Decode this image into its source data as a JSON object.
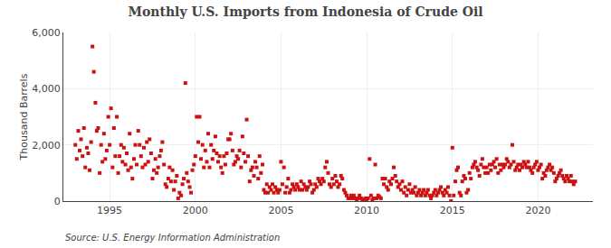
{
  "chart_data": {
    "type": "scatter",
    "title": "Monthly U.S. Imports from Indonesia of Crude Oil",
    "ylabel": "Thousand Barrels",
    "annotations": [
      "Source: U.S. Energy Information Administration"
    ],
    "color": "#cc1111",
    "marker": "square",
    "grid": true,
    "xlim": [
      1992.3,
      2023.2
    ],
    "xticks": [
      1995,
      2000,
      2005,
      2010,
      2015,
      2020
    ],
    "ylim": [
      0,
      6000
    ],
    "yticks": [
      0,
      {
        "value": 2000,
        "label": "2,000"
      },
      {
        "value": 4000,
        "label": "4,000"
      },
      {
        "value": 6000,
        "label": "6,000"
      }
    ],
    "x": [
      1993.0,
      1993.08,
      1993.17,
      1993.25,
      1993.33,
      1993.42,
      1993.5,
      1993.58,
      1993.67,
      1993.75,
      1993.83,
      1993.92,
      1994.0,
      1994.08,
      1994.17,
      1994.25,
      1994.33,
      1994.42,
      1994.5,
      1994.58,
      1994.67,
      1994.75,
      1994.83,
      1994.92,
      1995.0,
      1995.08,
      1995.17,
      1995.25,
      1995.33,
      1995.42,
      1995.5,
      1995.58,
      1995.67,
      1995.75,
      1995.83,
      1995.92,
      1996.0,
      1996.08,
      1996.17,
      1996.25,
      1996.33,
      1996.42,
      1996.5,
      1996.58,
      1996.67,
      1996.75,
      1996.83,
      1996.92,
      1997.0,
      1997.08,
      1997.17,
      1997.25,
      1997.33,
      1997.42,
      1997.5,
      1997.58,
      1997.67,
      1997.75,
      1997.83,
      1997.92,
      1998.0,
      1998.08,
      1998.17,
      1998.25,
      1998.33,
      1998.42,
      1998.5,
      1998.58,
      1998.67,
      1998.75,
      1998.83,
      1998.92,
      1999.0,
      1999.08,
      1999.17,
      1999.25,
      1999.33,
      1999.42,
      1999.5,
      1999.58,
      1999.67,
      1999.75,
      1999.83,
      1999.92,
      2000.0,
      2000.08,
      2000.17,
      2000.25,
      2000.33,
      2000.42,
      2000.5,
      2000.58,
      2000.67,
      2000.75,
      2000.83,
      2000.92,
      2001.0,
      2001.08,
      2001.17,
      2001.25,
      2001.33,
      2001.42,
      2001.5,
      2001.58,
      2001.67,
      2001.75,
      2001.83,
      2001.92,
      2002.0,
      2002.08,
      2002.17,
      2002.25,
      2002.33,
      2002.42,
      2002.5,
      2002.58,
      2002.67,
      2002.75,
      2002.83,
      2002.92,
      2003.0,
      2003.08,
      2003.17,
      2003.25,
      2003.33,
      2003.42,
      2003.5,
      2003.58,
      2003.67,
      2003.75,
      2003.83,
      2003.92,
      2004.0,
      2004.08,
      2004.17,
      2004.25,
      2004.33,
      2004.42,
      2004.5,
      2004.58,
      2004.67,
      2004.75,
      2004.83,
      2004.92,
      2005.0,
      2005.08,
      2005.17,
      2005.25,
      2005.33,
      2005.42,
      2005.5,
      2005.58,
      2005.67,
      2005.75,
      2005.83,
      2005.92,
      2006.0,
      2006.08,
      2006.17,
      2006.25,
      2006.33,
      2006.42,
      2006.5,
      2006.58,
      2006.67,
      2006.75,
      2006.83,
      2006.92,
      2007.0,
      2007.08,
      2007.17,
      2007.25,
      2007.33,
      2007.42,
      2007.5,
      2007.58,
      2007.67,
      2007.75,
      2007.83,
      2007.92,
      2008.0,
      2008.08,
      2008.17,
      2008.25,
      2008.33,
      2008.42,
      2008.5,
      2008.58,
      2008.67,
      2008.75,
      2008.83,
      2008.92,
      2009.0,
      2009.08,
      2009.17,
      2009.25,
      2009.33,
      2009.42,
      2009.5,
      2009.58,
      2009.67,
      2009.75,
      2009.83,
      2009.92,
      2010.0,
      2010.08,
      2010.17,
      2010.25,
      2010.33,
      2010.42,
      2010.5,
      2010.58,
      2010.67,
      2010.75,
      2010.83,
      2010.92,
      2011.0,
      2011.08,
      2011.17,
      2011.25,
      2011.33,
      2011.42,
      2011.5,
      2011.58,
      2011.67,
      2011.75,
      2011.83,
      2011.92,
      2012.0,
      2012.08,
      2012.17,
      2012.25,
      2012.33,
      2012.42,
      2012.5,
      2012.58,
      2012.67,
      2012.75,
      2012.83,
      2012.92,
      2013.0,
      2013.08,
      2013.17,
      2013.25,
      2013.33,
      2013.42,
      2013.5,
      2013.58,
      2013.67,
      2013.75,
      2013.83,
      2013.92,
      2014.0,
      2014.08,
      2014.17,
      2014.25,
      2014.33,
      2014.42,
      2014.5,
      2014.58,
      2014.67,
      2014.75,
      2014.83,
      2014.92,
      2015.0,
      2015.08,
      2015.17,
      2015.25,
      2015.33,
      2015.42,
      2015.5,
      2015.58,
      2015.67,
      2015.75,
      2015.83,
      2015.92,
      2016.0,
      2016.08,
      2016.17,
      2016.25,
      2016.33,
      2016.42,
      2016.5,
      2016.58,
      2016.67,
      2016.75,
      2016.83,
      2016.92,
      2017.0,
      2017.08,
      2017.17,
      2017.25,
      2017.33,
      2017.42,
      2017.5,
      2017.58,
      2017.67,
      2017.75,
      2017.83,
      2017.92,
      2018.0,
      2018.08,
      2018.17,
      2018.25,
      2018.33,
      2018.42,
      2018.5,
      2018.58,
      2018.67,
      2018.75,
      2018.83,
      2018.92,
      2019.0,
      2019.08,
      2019.17,
      2019.25,
      2019.33,
      2019.42,
      2019.5,
      2019.58,
      2019.67,
      2019.75,
      2019.83,
      2019.92,
      2020.0,
      2020.08,
      2020.17,
      2020.25,
      2020.33,
      2020.42,
      2020.5,
      2020.58,
      2020.67,
      2020.75,
      2020.83,
      2020.92,
      2021.0,
      2021.08,
      2021.17,
      2021.25,
      2021.33,
      2021.42,
      2021.5,
      2021.58,
      2021.67,
      2021.75,
      2021.83,
      2021.92,
      2022.0,
      2022.08,
      2022.17
    ],
    "values": [
      2000,
      1500,
      2500,
      1800,
      2200,
      1600,
      2600,
      1200,
      1900,
      1700,
      1100,
      2100,
      5500,
      4600,
      3500,
      2500,
      2600,
      1000,
      2000,
      1400,
      2400,
      1500,
      1800,
      3000,
      2000,
      3300,
      1200,
      2600,
      1600,
      3000,
      1000,
      1600,
      2000,
      1400,
      1900,
      1300,
      1700,
      1100,
      2400,
      1200,
      800,
      1500,
      2000,
      1300,
      2500,
      2000,
      1600,
      1200,
      1900,
      1300,
      2100,
      1400,
      2200,
      1700,
      800,
      1100,
      1500,
      1000,
      1200,
      1600,
      1800,
      2100,
      1300,
      600,
      500,
      800,
      1200,
      700,
      1100,
      400,
      700,
      900,
      100,
      300,
      200,
      600,
      800,
      4200,
      1000,
      700,
      500,
      300,
      1100,
      1300,
      1600,
      3000,
      2100,
      3000,
      1500,
      2000,
      1200,
      1800,
      1400,
      2400,
      1200,
      2000,
      1500,
      1800,
      2300,
      1700,
      1400,
      1600,
      1200,
      1000,
      1600,
      1300,
      1700,
      2200,
      2200,
      2400,
      1800,
      1300,
      1400,
      1600,
      1500,
      1800,
      1200,
      2300,
      1700,
      1400,
      2900,
      1600,
      700,
      1100,
      1200,
      900,
      1400,
      1200,
      800,
      1600,
      1000,
      1300,
      400,
      300,
      600,
      300,
      500,
      400,
      600,
      300,
      500,
      400,
      300,
      400,
      1400,
      600,
      1200,
      300,
      500,
      800,
      300,
      400,
      600,
      500,
      400,
      600,
      500,
      400,
      700,
      400,
      600,
      500,
      400,
      500,
      700,
      600,
      300,
      400,
      600,
      500,
      800,
      700,
      600,
      800,
      700,
      1200,
      1400,
      1000,
      600,
      500,
      800,
      600,
      900,
      700,
      500,
      600,
      900,
      800,
      400,
      300,
      200,
      100,
      100,
      200,
      100,
      200,
      100,
      50,
      100,
      200,
      100,
      0,
      50,
      100,
      0,
      100,
      1500,
      200,
      50,
      100,
      1300,
      100,
      200,
      150,
      100,
      800,
      600,
      800,
      500,
      400,
      700,
      600,
      800,
      1200,
      900,
      700,
      500,
      600,
      400,
      700,
      300,
      500,
      200,
      400,
      600,
      300,
      400,
      300,
      500,
      200,
      300,
      400,
      200,
      300,
      400,
      200,
      300,
      400,
      200,
      100,
      200,
      300,
      400,
      200,
      300,
      400,
      500,
      300,
      200,
      400,
      300,
      500,
      200,
      0,
      1900,
      200,
      700,
      1100,
      1200,
      300,
      200,
      700,
      900,
      800,
      300,
      400,
      1000,
      800,
      1200,
      1300,
      1400,
      1200,
      1100,
      900,
      1300,
      1500,
      1200,
      1000,
      1200,
      1000,
      1300,
      1100,
      1300,
      1400,
      1200,
      1500,
      1000,
      1300,
      1100,
      1300,
      1200,
      1300,
      1500,
      1400,
      1200,
      1300,
      2000,
      1400,
      1100,
      1200,
      1300,
      1100,
      1300,
      1200,
      1400,
      1300,
      1200,
      1400,
      1200,
      1100,
      1000,
      1200,
      1300,
      1400,
      1100,
      1200,
      1300,
      800,
      1000,
      900,
      1100,
      1200,
      1300,
      1100,
      1200,
      1000,
      700,
      800,
      900,
      1000,
      1100,
      900,
      800,
      700,
      900,
      800,
      700,
      900,
      700,
      600,
      700
    ]
  }
}
